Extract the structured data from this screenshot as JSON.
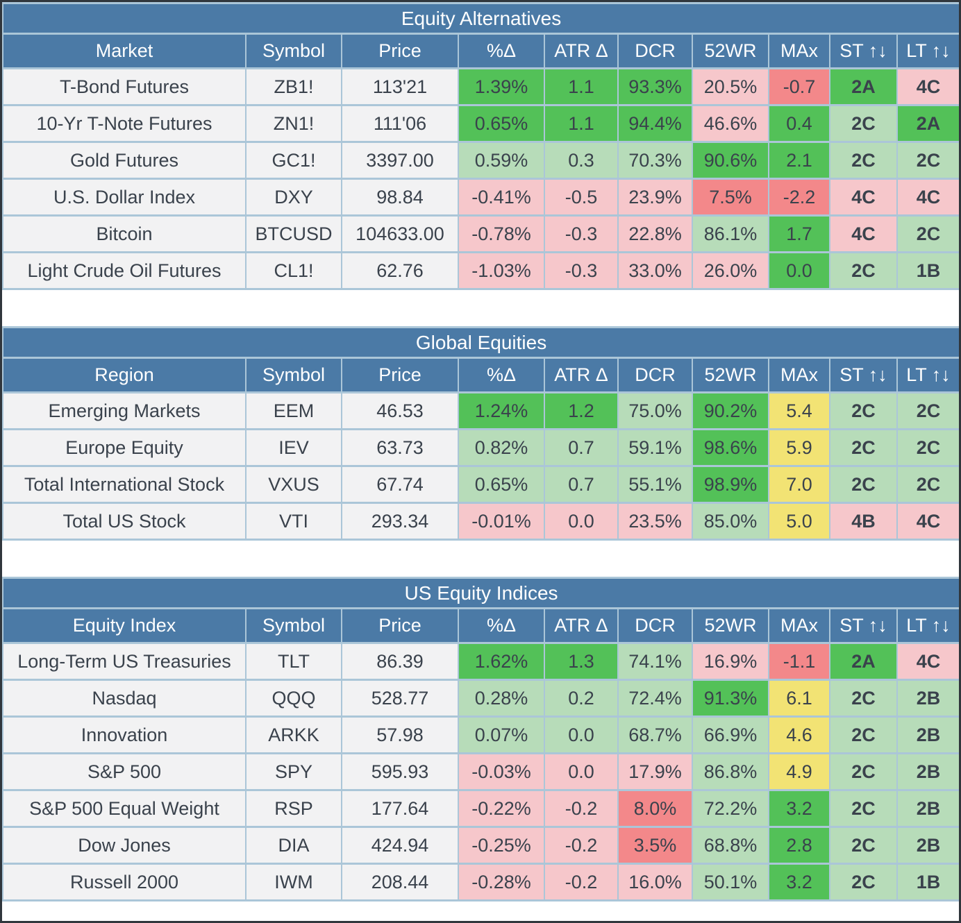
{
  "colors": {
    "header_blue": "#4b7aa6",
    "grid_light_blue": "#abc6d8",
    "outer_border_dark": "#30363c",
    "cell_bright_green": "#53c158",
    "cell_light_green": "#b7dcb9",
    "cell_light_pink": "#f6c7cb",
    "cell_red": "#f3888a",
    "cell_yellow": "#f2e374",
    "label_cell_gray": "#f2f2f3",
    "text_dark": "#3a424c",
    "text_white": "#ffffff"
  },
  "tables": [
    {
      "title": "Equity Alternatives",
      "headers": [
        "Market",
        "Symbol",
        "Price",
        "%Δ",
        "ATR Δ",
        "DCR",
        "52WR",
        "MAx",
        "ST ↑↓",
        "LT ↑↓"
      ],
      "rows": [
        {
          "label": "T-Bond Futures",
          "symbol": "ZB1!",
          "price": "113'21",
          "values": [
            {
              "t": "1.39%",
              "c": "g"
            },
            {
              "t": "1.1",
              "c": "g"
            },
            {
              "t": "93.3%",
              "c": "g"
            },
            {
              "t": "20.5%",
              "c": "p"
            },
            {
              "t": "-0.7",
              "c": "r"
            },
            {
              "t": "2A",
              "c": "g"
            },
            {
              "t": "4C",
              "c": "p"
            }
          ]
        },
        {
          "label": "10-Yr T-Note Futures",
          "symbol": "ZN1!",
          "price": "111'06",
          "values": [
            {
              "t": "0.65%",
              "c": "g"
            },
            {
              "t": "1.1",
              "c": "g"
            },
            {
              "t": "94.4%",
              "c": "g"
            },
            {
              "t": "46.6%",
              "c": "p"
            },
            {
              "t": "0.4",
              "c": "g"
            },
            {
              "t": "2C",
              "c": "lg"
            },
            {
              "t": "2A",
              "c": "g"
            }
          ]
        },
        {
          "label": "Gold Futures",
          "symbol": "GC1!",
          "price": "3397.00",
          "values": [
            {
              "t": "0.59%",
              "c": "lg"
            },
            {
              "t": "0.3",
              "c": "lg"
            },
            {
              "t": "70.3%",
              "c": "lg"
            },
            {
              "t": "90.6%",
              "c": "g"
            },
            {
              "t": "2.1",
              "c": "g"
            },
            {
              "t": "2C",
              "c": "lg"
            },
            {
              "t": "2C",
              "c": "lg"
            }
          ]
        },
        {
          "label": "U.S. Dollar Index",
          "symbol": "DXY",
          "price": "98.84",
          "values": [
            {
              "t": "-0.41%",
              "c": "p"
            },
            {
              "t": "-0.5",
              "c": "p"
            },
            {
              "t": "23.9%",
              "c": "p"
            },
            {
              "t": "7.5%",
              "c": "r"
            },
            {
              "t": "-2.2",
              "c": "r"
            },
            {
              "t": "4C",
              "c": "p"
            },
            {
              "t": "4C",
              "c": "p"
            }
          ]
        },
        {
          "label": "Bitcoin",
          "symbol": "BTCUSD",
          "price": "104633.00",
          "values": [
            {
              "t": "-0.78%",
              "c": "p"
            },
            {
              "t": "-0.3",
              "c": "p"
            },
            {
              "t": "22.8%",
              "c": "p"
            },
            {
              "t": "86.1%",
              "c": "lg"
            },
            {
              "t": "1.7",
              "c": "g"
            },
            {
              "t": "4C",
              "c": "p"
            },
            {
              "t": "2C",
              "c": "lg"
            }
          ]
        },
        {
          "label": "Light Crude Oil Futures",
          "symbol": "CL1!",
          "price": "62.76",
          "values": [
            {
              "t": "-1.03%",
              "c": "p"
            },
            {
              "t": "-0.3",
              "c": "p"
            },
            {
              "t": "33.0%",
              "c": "p"
            },
            {
              "t": "26.0%",
              "c": "p"
            },
            {
              "t": "0.0",
              "c": "g"
            },
            {
              "t": "2C",
              "c": "lg"
            },
            {
              "t": "1B",
              "c": "lg"
            }
          ]
        }
      ]
    },
    {
      "title": "Global Equities",
      "headers": [
        "Region",
        "Symbol",
        "Price",
        "%Δ",
        "ATR Δ",
        "DCR",
        "52WR",
        "MAx",
        "ST ↑↓",
        "LT ↑↓"
      ],
      "rows": [
        {
          "label": "Emerging Markets",
          "symbol": "EEM",
          "price": "46.53",
          "values": [
            {
              "t": "1.24%",
              "c": "g"
            },
            {
              "t": "1.2",
              "c": "g"
            },
            {
              "t": "75.0%",
              "c": "lg"
            },
            {
              "t": "90.2%",
              "c": "g"
            },
            {
              "t": "5.4",
              "c": "y"
            },
            {
              "t": "2C",
              "c": "lg"
            },
            {
              "t": "2C",
              "c": "lg"
            }
          ]
        },
        {
          "label": "Europe Equity",
          "symbol": "IEV",
          "price": "63.73",
          "values": [
            {
              "t": "0.82%",
              "c": "lg"
            },
            {
              "t": "0.7",
              "c": "lg"
            },
            {
              "t": "59.1%",
              "c": "lg"
            },
            {
              "t": "98.6%",
              "c": "g"
            },
            {
              "t": "5.9",
              "c": "y"
            },
            {
              "t": "2C",
              "c": "lg"
            },
            {
              "t": "2C",
              "c": "lg"
            }
          ]
        },
        {
          "label": "Total International Stock",
          "symbol": "VXUS",
          "price": "67.74",
          "values": [
            {
              "t": "0.65%",
              "c": "lg"
            },
            {
              "t": "0.7",
              "c": "lg"
            },
            {
              "t": "55.1%",
              "c": "lg"
            },
            {
              "t": "98.9%",
              "c": "g"
            },
            {
              "t": "7.0",
              "c": "y"
            },
            {
              "t": "2C",
              "c": "lg"
            },
            {
              "t": "2C",
              "c": "lg"
            }
          ]
        },
        {
          "label": "Total US Stock",
          "symbol": "VTI",
          "price": "293.34",
          "values": [
            {
              "t": "-0.01%",
              "c": "p"
            },
            {
              "t": "0.0",
              "c": "p"
            },
            {
              "t": "23.5%",
              "c": "p"
            },
            {
              "t": "85.0%",
              "c": "lg"
            },
            {
              "t": "5.0",
              "c": "y"
            },
            {
              "t": "4B",
              "c": "p"
            },
            {
              "t": "4C",
              "c": "p"
            }
          ]
        }
      ]
    },
    {
      "title": "US Equity Indices",
      "headers": [
        "Equity Index",
        "Symbol",
        "Price",
        "%Δ",
        "ATR Δ",
        "DCR",
        "52WR",
        "MAx",
        "ST ↑↓",
        "LT ↑↓"
      ],
      "rows": [
        {
          "label": "Long-Term US Treasuries",
          "symbol": "TLT",
          "price": "86.39",
          "values": [
            {
              "t": "1.62%",
              "c": "g"
            },
            {
              "t": "1.3",
              "c": "g"
            },
            {
              "t": "74.1%",
              "c": "lg"
            },
            {
              "t": "16.9%",
              "c": "p"
            },
            {
              "t": "-1.1",
              "c": "r"
            },
            {
              "t": "2A",
              "c": "g"
            },
            {
              "t": "4C",
              "c": "p"
            }
          ]
        },
        {
          "label": "Nasdaq",
          "symbol": "QQQ",
          "price": "528.77",
          "values": [
            {
              "t": "0.28%",
              "c": "lg"
            },
            {
              "t": "0.2",
              "c": "lg"
            },
            {
              "t": "72.4%",
              "c": "lg"
            },
            {
              "t": "91.3%",
              "c": "g"
            },
            {
              "t": "6.1",
              "c": "y"
            },
            {
              "t": "2C",
              "c": "lg"
            },
            {
              "t": "2B",
              "c": "lg"
            }
          ]
        },
        {
          "label": "Innovation",
          "symbol": "ARKK",
          "price": "57.98",
          "values": [
            {
              "t": "0.07%",
              "c": "lg"
            },
            {
              "t": "0.0",
              "c": "lg"
            },
            {
              "t": "68.7%",
              "c": "lg"
            },
            {
              "t": "66.9%",
              "c": "lg"
            },
            {
              "t": "4.6",
              "c": "y"
            },
            {
              "t": "2C",
              "c": "lg"
            },
            {
              "t": "2B",
              "c": "lg"
            }
          ]
        },
        {
          "label": "S&P 500",
          "symbol": "SPY",
          "price": "595.93",
          "values": [
            {
              "t": "-0.03%",
              "c": "p"
            },
            {
              "t": "0.0",
              "c": "p"
            },
            {
              "t": "17.9%",
              "c": "p"
            },
            {
              "t": "86.8%",
              "c": "lg"
            },
            {
              "t": "4.9",
              "c": "y"
            },
            {
              "t": "2C",
              "c": "lg"
            },
            {
              "t": "2B",
              "c": "lg"
            }
          ]
        },
        {
          "label": "S&P 500 Equal Weight",
          "symbol": "RSP",
          "price": "177.64",
          "values": [
            {
              "t": "-0.22%",
              "c": "p"
            },
            {
              "t": "-0.2",
              "c": "p"
            },
            {
              "t": "8.0%",
              "c": "r"
            },
            {
              "t": "72.2%",
              "c": "lg"
            },
            {
              "t": "3.2",
              "c": "g"
            },
            {
              "t": "2C",
              "c": "lg"
            },
            {
              "t": "2B",
              "c": "lg"
            }
          ]
        },
        {
          "label": "Dow Jones",
          "symbol": "DIA",
          "price": "424.94",
          "values": [
            {
              "t": "-0.25%",
              "c": "p"
            },
            {
              "t": "-0.2",
              "c": "p"
            },
            {
              "t": "3.5%",
              "c": "r"
            },
            {
              "t": "68.8%",
              "c": "lg"
            },
            {
              "t": "2.8",
              "c": "g"
            },
            {
              "t": "2C",
              "c": "lg"
            },
            {
              "t": "2B",
              "c": "lg"
            }
          ]
        },
        {
          "label": "Russell 2000",
          "symbol": "IWM",
          "price": "208.44",
          "values": [
            {
              "t": "-0.28%",
              "c": "p"
            },
            {
              "t": "-0.2",
              "c": "p"
            },
            {
              "t": "16.0%",
              "c": "p"
            },
            {
              "t": "50.1%",
              "c": "lg"
            },
            {
              "t": "3.2",
              "c": "g"
            },
            {
              "t": "2C",
              "c": "lg"
            },
            {
              "t": "1B",
              "c": "lg"
            }
          ]
        }
      ]
    }
  ]
}
